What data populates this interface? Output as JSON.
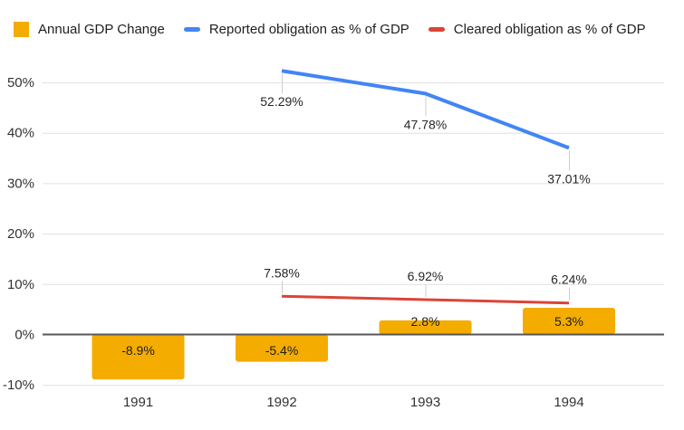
{
  "legend": {
    "items": [
      {
        "label": "Annual GDP Change",
        "swatch": "square"
      },
      {
        "label": "Reported obligation as % of GDP",
        "swatch": "line"
      },
      {
        "label": "Cleared obligation as % of GDP",
        "swatch": "line"
      }
    ]
  },
  "chart_data": {
    "type": "combo",
    "title": "",
    "categories": [
      "1991",
      "1992",
      "1993",
      "1994"
    ],
    "series": [
      {
        "name": "Annual GDP Change",
        "type": "bar",
        "color": "#F4AC00",
        "values": [
          -8.9,
          -5.4,
          2.8,
          5.3
        ],
        "data_labels": [
          "-8.9%",
          "-5.4%",
          "2.8%",
          "5.3%"
        ]
      },
      {
        "name": "Reported obligation as % of GDP",
        "type": "line",
        "color": "#4285F4",
        "values": [
          null,
          52.29,
          47.78,
          37.01
        ],
        "data_labels": [
          null,
          "52.29%",
          "47.78%",
          "37.01%"
        ],
        "label_position": "below"
      },
      {
        "name": "Cleared obligation as % of GDP",
        "type": "line",
        "color": "#DB4437",
        "values": [
          null,
          7.58,
          6.92,
          6.24
        ],
        "data_labels": [
          null,
          "7.58%",
          "6.92%",
          "6.24%"
        ],
        "label_position": "above"
      }
    ],
    "y_axis": {
      "min": -10,
      "max": 50,
      "ticks": [
        -10,
        0,
        10,
        20,
        30,
        40,
        50
      ],
      "tick_labels": [
        "-10%",
        "0%",
        "10%",
        "20%",
        "30%",
        "40%",
        "50%"
      ],
      "grid": true
    },
    "x_axis": {
      "labels": [
        "1991",
        "1992",
        "1993",
        "1994"
      ]
    },
    "legend_position": "top",
    "background": "#FFFFFF"
  }
}
